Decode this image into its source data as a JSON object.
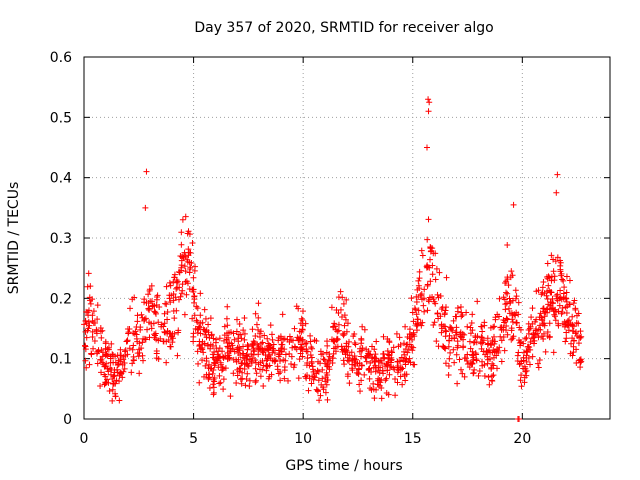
{
  "chart_data": {
    "type": "scatter",
    "title": "Day 357 of 2020, SRMTID for receiver algo",
    "xlabel": "GPS time / hours",
    "ylabel": "SRMTID / TECUs",
    "xlim": [
      0,
      24
    ],
    "ylim": [
      0,
      0.6
    ],
    "xticks": [
      0,
      5,
      10,
      15,
      20
    ],
    "yticks": [
      0,
      0.1,
      0.2,
      0.3,
      0.4,
      0.5,
      0.6
    ],
    "xtick_labels": [
      "0",
      "5",
      "10",
      "15",
      "20"
    ],
    "ytick_labels": [
      "0",
      "0.1",
      "0.2",
      "0.3",
      "0.4",
      "0.5",
      "0.6"
    ],
    "grid": true,
    "marker": "+",
    "color": "#ff0000",
    "x_range_of_data": [
      0,
      22.7
    ],
    "outliers": [
      {
        "x": 2.85,
        "y": 0.41
      },
      {
        "x": 2.8,
        "y": 0.35
      },
      {
        "x": 15.7,
        "y": 0.53
      },
      {
        "x": 15.75,
        "y": 0.525
      },
      {
        "x": 15.72,
        "y": 0.51
      },
      {
        "x": 15.65,
        "y": 0.45
      },
      {
        "x": 21.6,
        "y": 0.405
      },
      {
        "x": 21.55,
        "y": 0.375
      },
      {
        "x": 19.6,
        "y": 0.355
      },
      {
        "x": 19.8,
        "y": 0.0
      },
      {
        "x": 19.85,
        "y": 0.0
      }
    ],
    "series": [
      {
        "name": "SRMTID",
        "x": [
          0.0,
          0.25,
          0.5,
          0.75,
          1.0,
          1.25,
          1.5,
          1.75,
          2.0,
          2.25,
          2.5,
          2.75,
          3.0,
          3.25,
          3.5,
          3.75,
          4.0,
          4.25,
          4.5,
          4.75,
          5.0,
          5.25,
          5.5,
          5.75,
          6.0,
          6.25,
          6.5,
          6.75,
          7.0,
          7.25,
          7.5,
          7.75,
          8.0,
          8.25,
          8.5,
          8.75,
          9.0,
          9.25,
          9.5,
          9.75,
          10.0,
          10.25,
          10.5,
          10.75,
          11.0,
          11.25,
          11.5,
          11.75,
          12.0,
          12.25,
          12.5,
          12.75,
          13.0,
          13.25,
          13.5,
          13.75,
          14.0,
          14.25,
          14.5,
          14.75,
          15.0,
          15.25,
          15.5,
          15.75,
          16.0,
          16.25,
          16.5,
          16.75,
          17.0,
          17.25,
          17.5,
          17.75,
          18.0,
          18.25,
          18.5,
          18.75,
          19.0,
          19.25,
          19.5,
          19.75,
          20.0,
          20.25,
          20.5,
          20.75,
          21.0,
          21.25,
          21.5,
          21.75,
          22.0,
          22.25,
          22.5,
          22.75
        ],
        "y": [
          0.14,
          0.17,
          0.13,
          0.11,
          0.09,
          0.08,
          0.07,
          0.09,
          0.12,
          0.14,
          0.13,
          0.16,
          0.19,
          0.15,
          0.13,
          0.14,
          0.17,
          0.2,
          0.24,
          0.26,
          0.2,
          0.14,
          0.12,
          0.11,
          0.1,
          0.1,
          0.11,
          0.1,
          0.12,
          0.11,
          0.1,
          0.11,
          0.12,
          0.1,
          0.11,
          0.12,
          0.11,
          0.1,
          0.11,
          0.12,
          0.14,
          0.09,
          0.08,
          0.07,
          0.08,
          0.1,
          0.14,
          0.17,
          0.12,
          0.1,
          0.09,
          0.11,
          0.09,
          0.08,
          0.08,
          0.09,
          0.1,
          0.09,
          0.1,
          0.1,
          0.14,
          0.18,
          0.22,
          0.25,
          0.21,
          0.17,
          0.15,
          0.14,
          0.13,
          0.15,
          0.12,
          0.12,
          0.13,
          0.12,
          0.1,
          0.12,
          0.16,
          0.2,
          0.19,
          0.17,
          0.08,
          0.13,
          0.14,
          0.16,
          0.18,
          0.2,
          0.21,
          0.22,
          0.17,
          0.15,
          0.13,
          0.12
        ]
      }
    ]
  }
}
